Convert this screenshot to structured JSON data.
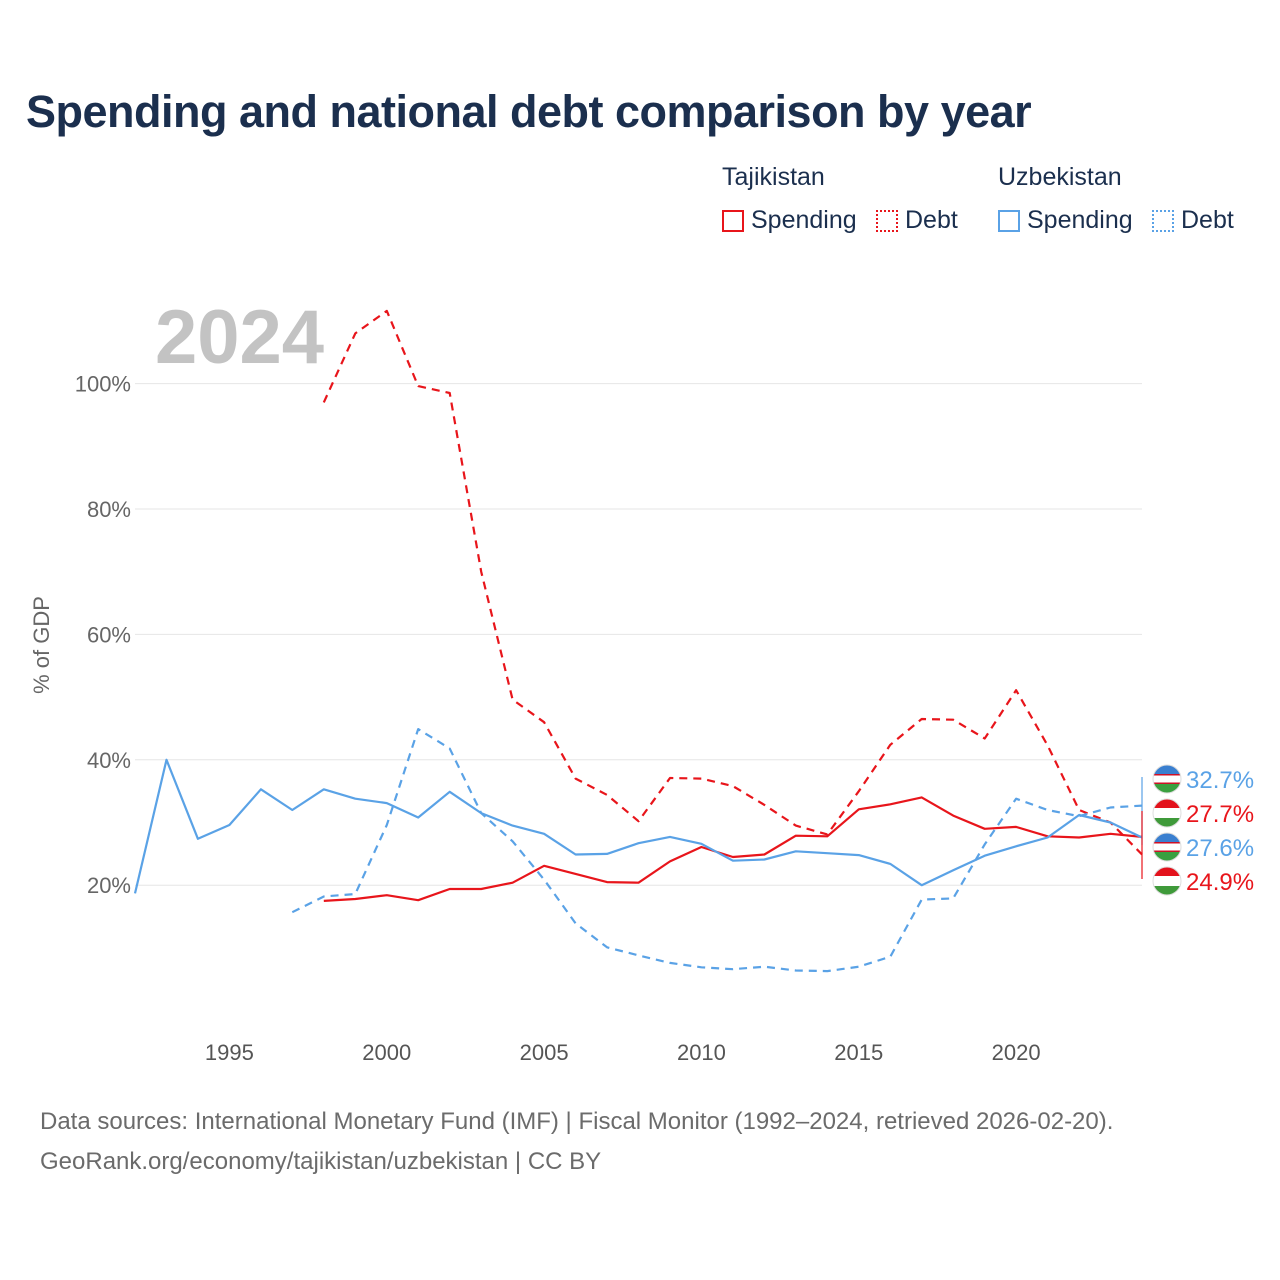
{
  "title": "Spending and national debt comparison by year",
  "legend": {
    "groups": [
      {
        "country": "Tajikistan",
        "items": [
          "Spending",
          "Debt"
        ],
        "color": "#e8151b"
      },
      {
        "country": "Uzbekistan",
        "items": [
          "Spending",
          "Debt"
        ],
        "color": "#5aa2e6"
      }
    ]
  },
  "footer": {
    "sources": "Data sources: International Monetary Fund (IMF) | Fiscal Monitor (1992–2024, retrieved 2026-02-20).",
    "attribution": "GeoRank.org/economy/tajikistan/uzbekistan | CC BY"
  },
  "chart_data": {
    "type": "line",
    "title": "Spending and national debt comparison by year",
    "year_label": "2024",
    "xlabel": "",
    "ylabel": "% of GDP",
    "xlim": [
      1992,
      2024
    ],
    "ylim": [
      0,
      112
    ],
    "x_ticks": [
      1995,
      2000,
      2005,
      2010,
      2015,
      2020
    ],
    "y_ticks": [
      20,
      40,
      60,
      80,
      100
    ],
    "y_tick_labels": [
      "20%",
      "40%",
      "60%",
      "80%",
      "100%"
    ],
    "grid": true,
    "series": [
      {
        "name": "Tajikistan Spending",
        "country": "Tajikistan",
        "style": "solid",
        "color": "#e8151b",
        "x": [
          1998,
          1999,
          2000,
          2001,
          2002,
          2003,
          2004,
          2005,
          2006,
          2007,
          2008,
          2009,
          2010,
          2011,
          2012,
          2013,
          2014,
          2015,
          2016,
          2017,
          2018,
          2019,
          2020,
          2021,
          2022,
          2023,
          2024
        ],
        "y": [
          17.5,
          17.8,
          18.4,
          17.6,
          19.4,
          19.4,
          20.4,
          23.1,
          21.8,
          20.5,
          20.4,
          23.8,
          26.1,
          24.5,
          24.9,
          27.9,
          27.8,
          32.1,
          32.9,
          34.0,
          31.1,
          29.0,
          29.3,
          27.8,
          27.6,
          28.2,
          27.7
        ]
      },
      {
        "name": "Tajikistan Debt",
        "country": "Tajikistan",
        "style": "dashed",
        "color": "#e8151b",
        "x": [
          1998,
          1999,
          2000,
          2001,
          2002,
          2003,
          2004,
          2005,
          2006,
          2007,
          2008,
          2009,
          2010,
          2011,
          2012,
          2013,
          2014,
          2015,
          2016,
          2017,
          2018,
          2019,
          2020,
          2021,
          2022,
          2023,
          2024
        ],
        "y": [
          97.0,
          108.0,
          111.6,
          99.6,
          98.5,
          70.0,
          49.6,
          46.0,
          37.0,
          34.4,
          30.2,
          37.1,
          37.0,
          35.8,
          32.8,
          29.5,
          28.1,
          35.0,
          42.4,
          46.5,
          46.4,
          43.4,
          51.1,
          42.3,
          32.0,
          30.0,
          24.9
        ]
      },
      {
        "name": "Uzbekistan Spending",
        "country": "Uzbekistan",
        "style": "solid",
        "color": "#5aa2e6",
        "x": [
          1992,
          1993,
          1994,
          1995,
          1996,
          1997,
          1998,
          1999,
          2000,
          2001,
          2002,
          2003,
          2004,
          2005,
          2006,
          2007,
          2008,
          2009,
          2010,
          2011,
          2012,
          2013,
          2014,
          2015,
          2016,
          2017,
          2018,
          2019,
          2020,
          2021,
          2022,
          2023,
          2024
        ],
        "y": [
          18.7,
          40.0,
          27.4,
          29.6,
          35.3,
          32.0,
          35.3,
          33.8,
          33.1,
          30.8,
          34.9,
          31.5,
          29.5,
          28.2,
          24.9,
          25.0,
          26.7,
          27.7,
          26.6,
          23.9,
          24.1,
          25.4,
          25.1,
          24.8,
          23.4,
          20.0,
          22.4,
          24.7,
          26.2,
          27.6,
          31.2,
          30.0,
          27.6
        ]
      },
      {
        "name": "Uzbekistan Debt",
        "country": "Uzbekistan",
        "style": "dashed",
        "color": "#5aa2e6",
        "x": [
          1997,
          1998,
          1999,
          2000,
          2001,
          2002,
          2003,
          2004,
          2005,
          2006,
          2007,
          2008,
          2009,
          2010,
          2011,
          2012,
          2013,
          2014,
          2015,
          2016,
          2017,
          2018,
          2019,
          2020,
          2021,
          2022,
          2023,
          2024
        ],
        "y": [
          15.7,
          18.2,
          18.6,
          29.6,
          44.9,
          41.8,
          31.5,
          27.0,
          20.9,
          13.9,
          10.1,
          8.8,
          7.6,
          6.9,
          6.6,
          7.0,
          6.4,
          6.3,
          7.0,
          8.6,
          17.7,
          17.9,
          26.5,
          33.8,
          32.0,
          31.0,
          32.4,
          32.7
        ]
      }
    ],
    "end_labels": [
      {
        "text": "32.7%",
        "value": 32.7,
        "country": "Uzbekistan",
        "color": "#5aa2e6",
        "flag": "uzbekistan-flag-icon"
      },
      {
        "text": "27.7%",
        "value": 27.7,
        "country": "Tajikistan",
        "color": "#e8151b",
        "flag": "tajikistan-flag-icon"
      },
      {
        "text": "27.6%",
        "value": 27.6,
        "country": "Uzbekistan",
        "color": "#5aa2e6",
        "flag": "uzbekistan-flag-icon"
      },
      {
        "text": "24.9%",
        "value": 24.9,
        "country": "Tajikistan",
        "color": "#e8151b",
        "flag": "tajikistan-flag-icon"
      }
    ]
  }
}
